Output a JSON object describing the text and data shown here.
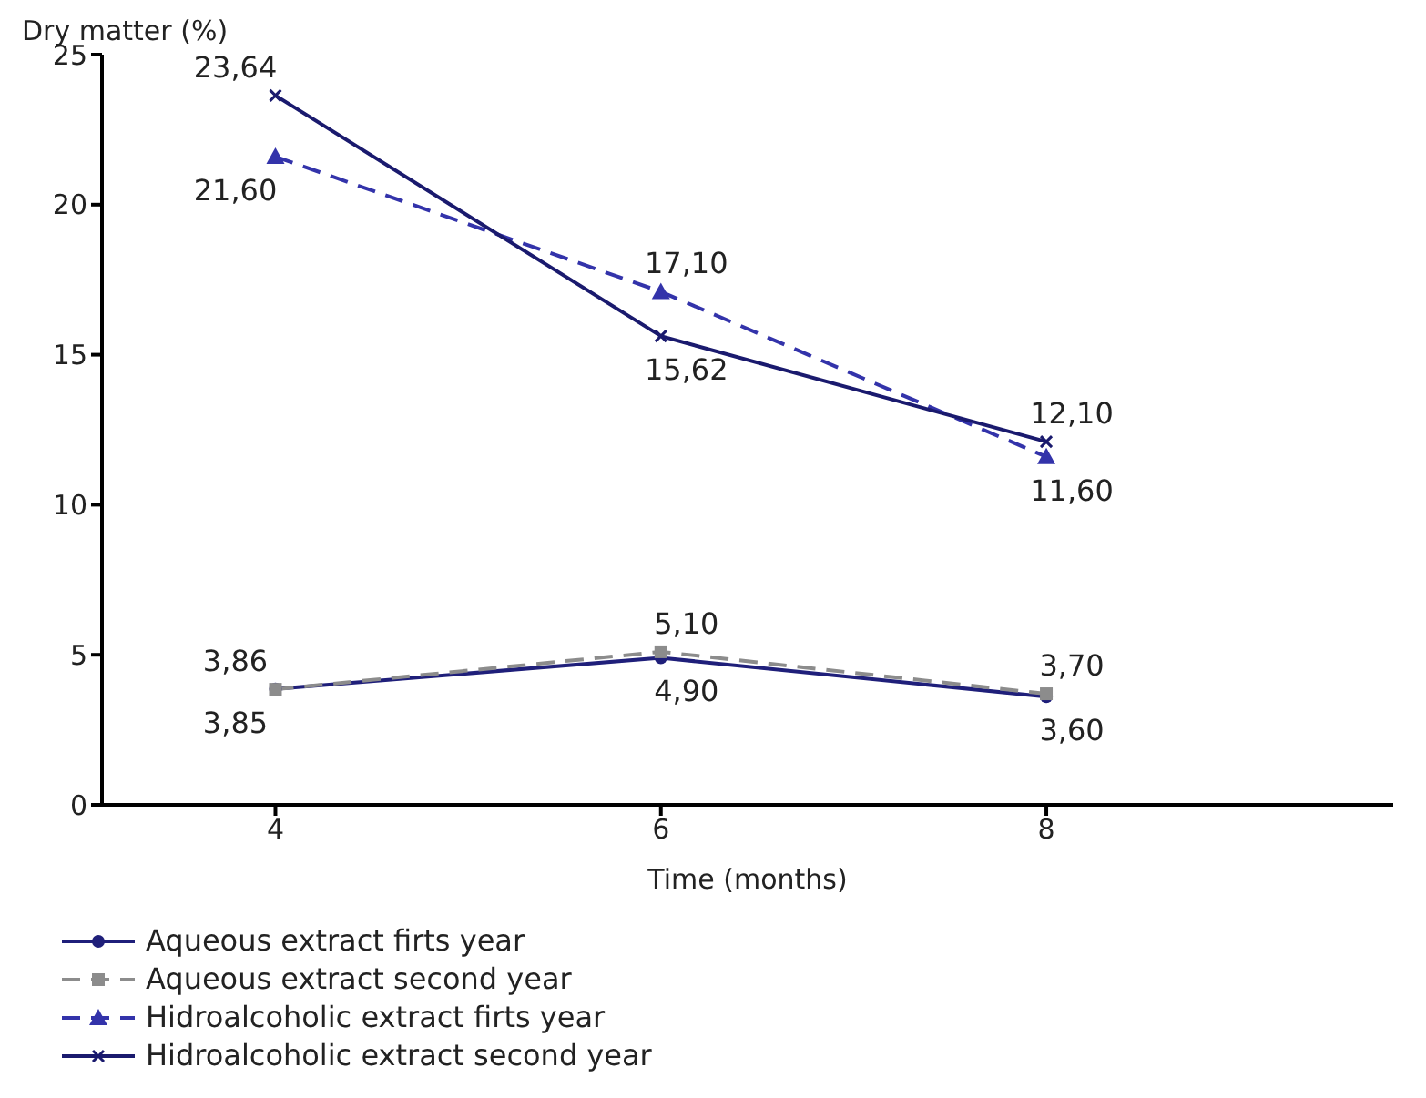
{
  "chart_data": {
    "type": "line",
    "xlabel": "Time (months)",
    "ylabel": "Dry matter (%)",
    "categories": [
      "4",
      "6",
      "8"
    ],
    "ylim": [
      0,
      25
    ],
    "yticks": [
      0,
      5,
      10,
      15,
      20,
      25
    ],
    "grid": false,
    "legend": "bottom",
    "series": [
      {
        "name": "Aqueous extract firts year",
        "color": "#1f1f7a",
        "values": [
          3.86,
          4.9,
          3.6
        ],
        "value_labels": [
          "3,86",
          "4,90",
          "3,60"
        ],
        "marker": "circle",
        "line_style": "solid"
      },
      {
        "name": "Aqueous extract second year",
        "color": "#8c8c8c",
        "values": [
          3.85,
          5.1,
          3.7
        ],
        "value_labels": [
          "3,85",
          "5,10",
          "3,70"
        ],
        "marker": "square",
        "line_style": "dashed"
      },
      {
        "name": "Hidroalcoholic extract firts year",
        "color": "#3333aa",
        "values": [
          21.6,
          17.1,
          11.6
        ],
        "value_labels": [
          "21,60",
          "17,10",
          "11,60"
        ],
        "marker": "triangle",
        "line_style": "dashed"
      },
      {
        "name": "Hidroalcoholic extract second year",
        "color": "#1a1a6e",
        "values": [
          23.64,
          15.62,
          12.1
        ],
        "value_labels": [
          "23,64",
          "15,62",
          "12,10"
        ],
        "marker": "cross",
        "line_style": "solid"
      }
    ]
  }
}
